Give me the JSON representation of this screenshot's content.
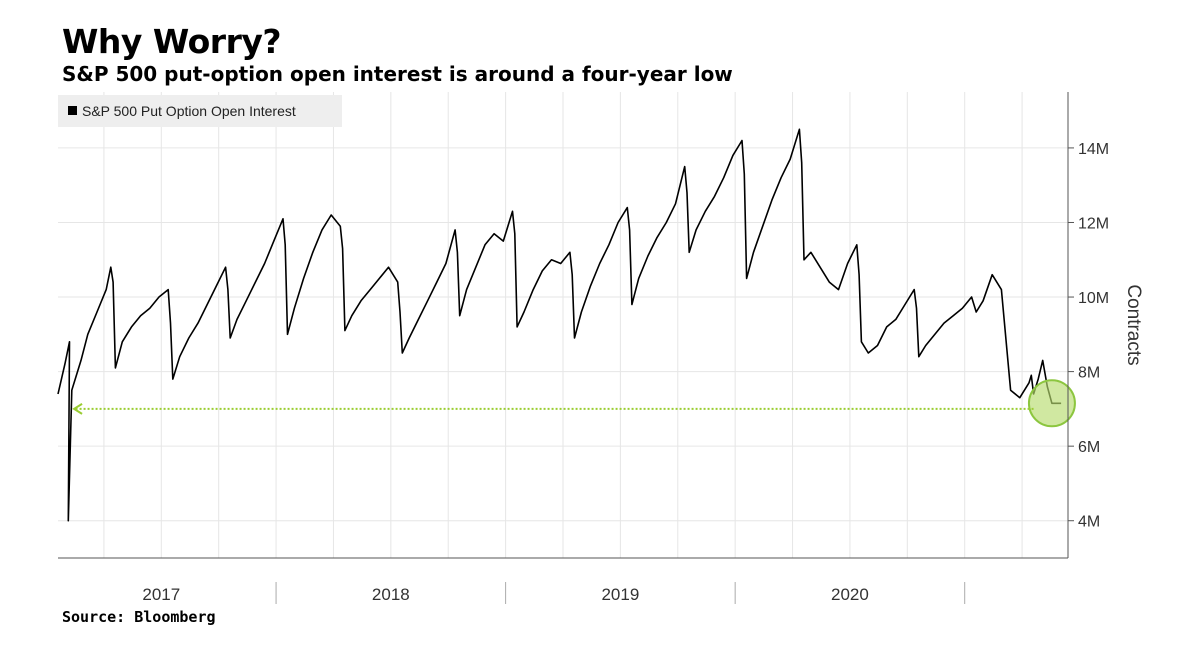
{
  "header": {
    "title": "Why Worry?",
    "subtitle": "S&P 500 put-option open interest is around a four-year low"
  },
  "footer": {
    "source": "Source: Bloomberg"
  },
  "colors": {
    "series": "#000000",
    "gridline": "#e6e6e6",
    "legend_bg": "#eeeeee",
    "highlight_fill": "#b7dc6f",
    "highlight_stroke": "#8cc63f",
    "arrow": "#9acd32"
  },
  "chart_data": {
    "type": "line",
    "title": "Why Worry?",
    "subtitle": "S&P 500 put-option open interest is around a four-year low",
    "ylabel": "Contracts",
    "xlabel": "",
    "legend": {
      "position": "top-left",
      "entries": [
        "S&P 500 Put Option Open Interest"
      ]
    },
    "ylim": [
      3000000,
      15500000
    ],
    "y_ticks": [
      {
        "value": 4000000,
        "label": "4M"
      },
      {
        "value": 6000000,
        "label": "6M"
      },
      {
        "value": 8000000,
        "label": "8M"
      },
      {
        "value": 10000000,
        "label": "10M"
      },
      {
        "value": 12000000,
        "label": "12M"
      },
      {
        "value": 14000000,
        "label": "14M"
      }
    ],
    "xlim": [
      2016.55,
      2020.95
    ],
    "x_year_labels": [
      {
        "center": 2017.0,
        "label": "2017"
      },
      {
        "center": 2018.0,
        "label": "2018"
      },
      {
        "center": 2019.0,
        "label": "2019"
      },
      {
        "center": 2020.0,
        "label": "2020"
      }
    ],
    "grid": true,
    "series": [
      {
        "name": "S&P 500 Put Option Open Interest",
        "x": [
          2016.55,
          2016.58,
          2016.6,
          2016.595,
          2016.61,
          2016.65,
          2016.68,
          2016.72,
          2016.76,
          2016.78,
          2016.79,
          2016.8,
          2016.83,
          2016.87,
          2016.91,
          2016.95,
          2016.99,
          2017.03,
          2017.04,
          2017.05,
          2017.08,
          2017.12,
          2017.16,
          2017.2,
          2017.24,
          2017.28,
          2017.29,
          2017.3,
          2017.33,
          2017.37,
          2017.41,
          2017.45,
          2017.49,
          2017.53,
          2017.54,
          2017.55,
          2017.58,
          2017.62,
          2017.66,
          2017.7,
          2017.74,
          2017.78,
          2017.79,
          2017.8,
          2017.83,
          2017.87,
          2017.91,
          2017.95,
          2017.99,
          2018.03,
          2018.04,
          2018.05,
          2018.08,
          2018.12,
          2018.16,
          2018.2,
          2018.24,
          2018.28,
          2018.29,
          2018.3,
          2018.33,
          2018.37,
          2018.41,
          2018.45,
          2018.49,
          2018.53,
          2018.54,
          2018.55,
          2018.58,
          2018.62,
          2018.66,
          2018.7,
          2018.74,
          2018.78,
          2018.79,
          2018.8,
          2018.83,
          2018.87,
          2018.91,
          2018.95,
          2018.99,
          2019.03,
          2019.04,
          2019.05,
          2019.08,
          2019.12,
          2019.16,
          2019.2,
          2019.24,
          2019.28,
          2019.29,
          2019.3,
          2019.33,
          2019.37,
          2019.41,
          2019.45,
          2019.49,
          2019.53,
          2019.54,
          2019.55,
          2019.58,
          2019.62,
          2019.66,
          2019.7,
          2019.74,
          2019.78,
          2019.79,
          2019.8,
          2019.83,
          2019.87,
          2019.91,
          2019.95,
          2019.99,
          2020.03,
          2020.04,
          2020.05,
          2020.08,
          2020.12,
          2020.16,
          2020.2,
          2020.24,
          2020.28,
          2020.29,
          2020.3,
          2020.33,
          2020.37,
          2020.41,
          2020.45,
          2020.49,
          2020.53,
          2020.54,
          2020.55,
          2020.58,
          2020.62,
          2020.66,
          2020.7,
          2020.74,
          2020.78,
          2020.79,
          2020.8,
          2020.82,
          2020.84,
          2020.86,
          2020.88,
          2020.9,
          2020.92
        ],
        "values": [
          7400000,
          8200000,
          8800000,
          4000000,
          7500000,
          8300000,
          9000000,
          9600000,
          10200000,
          10800000,
          10400000,
          8100000,
          8800000,
          9200000,
          9500000,
          9700000,
          10000000,
          10200000,
          9300000,
          7800000,
          8400000,
          8900000,
          9300000,
          9800000,
          10300000,
          10800000,
          10200000,
          8900000,
          9400000,
          9900000,
          10400000,
          10900000,
          11500000,
          12100000,
          11400000,
          9000000,
          9700000,
          10500000,
          11200000,
          11800000,
          12200000,
          11900000,
          11300000,
          9100000,
          9500000,
          9900000,
          10200000,
          10500000,
          10800000,
          10400000,
          9600000,
          8500000,
          8900000,
          9400000,
          9900000,
          10400000,
          10900000,
          11800000,
          11200000,
          9500000,
          10200000,
          10800000,
          11400000,
          11700000,
          11500000,
          12300000,
          11700000,
          9200000,
          9600000,
          10200000,
          10700000,
          11000000,
          10900000,
          11200000,
          10600000,
          8900000,
          9600000,
          10300000,
          10900000,
          11400000,
          12000000,
          12400000,
          11800000,
          9800000,
          10500000,
          11100000,
          11600000,
          12000000,
          12500000,
          13500000,
          12800000,
          11200000,
          11800000,
          12300000,
          12700000,
          13200000,
          13800000,
          14200000,
          13300000,
          10500000,
          11200000,
          11900000,
          12600000,
          13200000,
          13700000,
          14500000,
          13600000,
          11000000,
          11200000,
          10800000,
          10400000,
          10200000,
          10900000,
          11400000,
          10600000,
          8800000,
          8500000,
          8700000,
          9200000,
          9400000,
          9800000,
          10200000,
          9700000,
          8400000,
          8700000,
          9000000,
          9300000,
          9500000,
          9700000,
          10000000,
          9800000,
          9600000,
          9900000,
          10600000,
          10200000,
          7500000,
          7300000,
          7700000,
          7900000,
          7400000,
          7800000,
          8300000,
          7600000,
          7150000,
          7150000,
          7150000
        ]
      }
    ],
    "annotations": [
      {
        "type": "highlight-circle",
        "x": 2020.88,
        "y": 7150000,
        "label": ""
      },
      {
        "type": "dotted-arrow",
        "from_x": 2020.8,
        "to_x": 2016.62,
        "y": 7000000,
        "label": ""
      }
    ]
  }
}
